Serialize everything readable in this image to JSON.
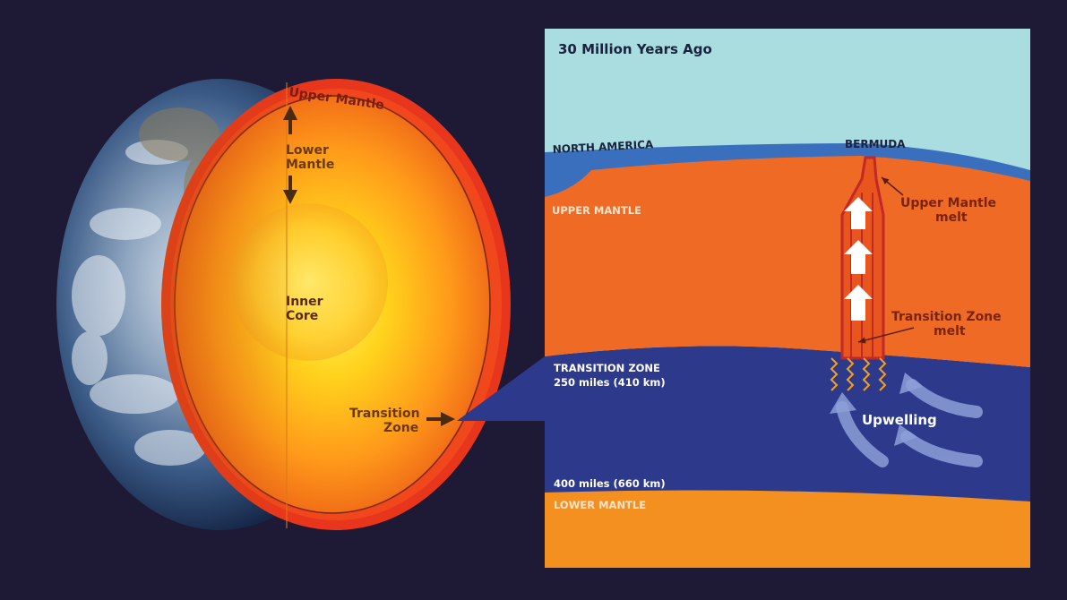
{
  "globe": {
    "upper_mantle": "Upper Mantle",
    "lower_mantle_1": "Lower",
    "lower_mantle_2": "Mantle",
    "inner_core_1": "Inner",
    "inner_core_2": "Core",
    "transition_zone_1": "Transition",
    "transition_zone_2": "Zone"
  },
  "panel": {
    "title": "30 Million Years Ago",
    "north_america": "NORTH AMERICA",
    "bermuda": "BERMUDA",
    "upper_mantle": "UPPER MANTLE",
    "upper_mantle_melt_1": "Upper Mantle",
    "upper_mantle_melt_2": "melt",
    "transition_melt_1": "Transition Zone",
    "transition_melt_2": "melt",
    "transition_zone": "TRANSITION ZONE",
    "depth_410": "250 miles (410 km)",
    "upwelling": "Upwelling",
    "depth_660": "400 miles (660 km)",
    "lower_mantle": "LOWER MANTLE"
  },
  "colors": {
    "background": "#1e1934",
    "ocean_sky": "#a9dde0",
    "crust": "#3a6fbe",
    "upper_mantle": "#ef6a25",
    "transition_zone": "#2d3a8c",
    "lower_mantle": "#f39020",
    "melt": "#c0282a"
  }
}
